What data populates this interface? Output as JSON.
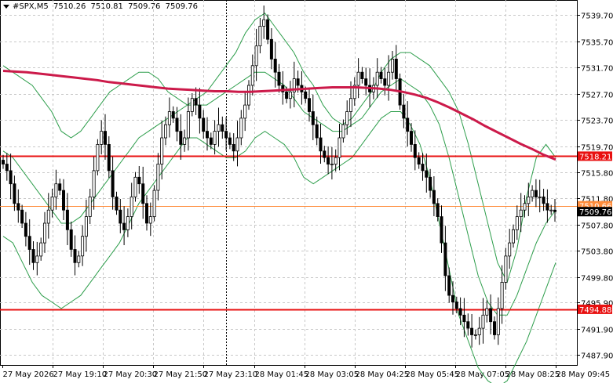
{
  "header": {
    "symbol": "#SPX,M5",
    "open": "7510.26",
    "high": "7510.81",
    "low": "7509.76",
    "close": "7509.76"
  },
  "colors": {
    "background": "#ffffff",
    "grid": "#c8c8c8",
    "candle": "#000000",
    "bollinger": "#2e9e4c",
    "moving_average": "#cc1a4a",
    "level_line": "#e81010",
    "bid_line": "#ff8c3a",
    "price_label_bg": "#000000",
    "level_label_bg": "#e81010"
  },
  "chart_data": {
    "type": "candlestick",
    "symbol": "#SPX",
    "timeframe": "M5",
    "ylim": [
      7486.4,
      7542.0
    ],
    "y_ticks": [
      "7539.70",
      "7535.70",
      "7531.70",
      "7527.70",
      "7523.70",
      "7519.70",
      "7515.80",
      "7511.80",
      "7507.80",
      "7503.80",
      "7499.80",
      "7495.90",
      "7491.90",
      "7487.90"
    ],
    "x_ticks": [
      "27 May 2026",
      "27 May 19:10",
      "27 May 20:30",
      "27 May 21:50",
      "27 May 23:10",
      "28 May 01:45",
      "28 May 03:05",
      "28 May 04:25",
      "28 May 05:45",
      "28 May 07:05",
      "28 May 08:25",
      "28 May 09:45"
    ],
    "grid": true,
    "horizontal_levels": [
      {
        "label": "7518.21",
        "value": 7518.21,
        "style": "level"
      },
      {
        "label": "7494.88",
        "value": 7494.88,
        "style": "level"
      },
      {
        "label": "7510.66",
        "value": 7510.66,
        "style": "bid"
      }
    ],
    "current_price": {
      "label": "7509.76",
      "value": 7509.76
    },
    "crosshair_time": "27 May 23:10",
    "close_series": [
      7517,
      7516,
      7514,
      7511,
      7510,
      7508,
      7506,
      7504,
      7502,
      7503,
      7505,
      7508,
      7510,
      7512,
      7514,
      7513,
      7510,
      7507,
      7504,
      7502,
      7503,
      7506,
      7509,
      7512,
      7516,
      7520,
      7522,
      7520,
      7516,
      7512,
      7510,
      7508,
      7507,
      7509,
      7512,
      7515,
      7514,
      7511,
      7508,
      7509,
      7513,
      7517,
      7521,
      7523,
      7525,
      7524,
      7522,
      7520,
      7521,
      7525,
      7527,
      7526,
      7524,
      7522,
      7521,
      7520,
      7522,
      7523,
      7522,
      7521,
      7520,
      7519,
      7521,
      7524,
      7526,
      7529,
      7532,
      7535,
      7538,
      7539,
      7536,
      7533,
      7531,
      7529,
      7528,
      7527,
      7528,
      7530,
      7529,
      7528,
      7527,
      7525,
      7523,
      7521,
      7519,
      7518,
      7517,
      7517,
      7518,
      7521,
      7523,
      7525,
      7527,
      7529,
      7531,
      7530,
      7529,
      7528,
      7529,
      7531,
      7530,
      7529,
      7531,
      7533,
      7530,
      7526,
      7524,
      7522,
      7520,
      7518,
      7517,
      7516,
      7515,
      7513,
      7511,
      7509,
      7505,
      7500,
      7497,
      7496,
      7495,
      7494,
      7493,
      7492,
      7491,
      7491,
      7492,
      7494,
      7495,
      7493,
      7491,
      7495,
      7499,
      7503,
      7505,
      7507,
      7509,
      7510,
      7511,
      7512,
      7513,
      7512,
      7512,
      7511,
      7510,
      7510,
      7509.76
    ],
    "ma_series": [
      7531.2,
      7531.1,
      7531.0,
      7530.8,
      7530.6,
      7530.4,
      7530.2,
      7530.0,
      7529.8,
      7529.5,
      7529.3,
      7529.1,
      7528.9,
      7528.7,
      7528.5,
      7528.4,
      7528.3,
      7528.2,
      7528.1,
      7528.1,
      7528.0,
      7528.0,
      7528.1,
      7528.2,
      7528.3,
      7528.4,
      7528.5,
      7528.6,
      7528.7,
      7528.7,
      7528.7,
      7528.6,
      7528.5,
      7528.3,
      7528.0,
      7527.6,
      7527.1,
      7526.4,
      7525.6,
      7524.7,
      7523.8,
      7522.8,
      7521.9,
      7521.0,
      7520.1,
      7519.3,
      7518.4,
      7517.7
    ],
    "bands": {
      "upper": [
        7532,
        7531,
        7530,
        7529,
        7527,
        7525,
        7522,
        7521,
        7522,
        7524,
        7526,
        7528,
        7529,
        7530,
        7531,
        7531,
        7530,
        7528,
        7527,
        7526,
        7527,
        7528,
        7530,
        7532,
        7534,
        7537,
        7539,
        7540,
        7538,
        7536,
        7534,
        7531,
        7529,
        7526,
        7524,
        7523,
        7524,
        7526,
        7528,
        7531,
        7533,
        7534,
        7534,
        7533,
        7532,
        7530,
        7528,
        7525,
        7520,
        7514,
        7508,
        7502,
        7499,
        7504,
        7512,
        7518,
        7520,
        7518
      ],
      "middle": [
        7519,
        7518,
        7516,
        7514,
        7512,
        7510,
        7508,
        7508,
        7509,
        7511,
        7513,
        7515,
        7517,
        7519,
        7521,
        7522,
        7523,
        7524,
        7525,
        7526,
        7526,
        7526,
        7527,
        7528,
        7529,
        7530,
        7531,
        7531,
        7530,
        7529,
        7527,
        7525,
        7524,
        7523,
        7522,
        7522,
        7523,
        7524,
        7526,
        7528,
        7529,
        7530,
        7529,
        7528,
        7526,
        7523,
        7518,
        7512,
        7506,
        7500,
        7496,
        7494,
        7494,
        7497,
        7501,
        7505,
        7508,
        7510
      ],
      "lower": [
        7506,
        7505,
        7502,
        7499,
        7497,
        7496,
        7495,
        7496,
        7497,
        7499,
        7501,
        7503,
        7505,
        7508,
        7511,
        7513,
        7515,
        7517,
        7519,
        7521,
        7521,
        7520,
        7519,
        7518,
        7518,
        7519,
        7521,
        7522,
        7521,
        7520,
        7518,
        7515,
        7514,
        7515,
        7516,
        7517,
        7518,
        7520,
        7522,
        7524,
        7525,
        7525,
        7523,
        7520,
        7515,
        7508,
        7501,
        7494,
        7490,
        7486,
        7484,
        7483,
        7484,
        7487,
        7490,
        7494,
        7498,
        7502
      ]
    }
  }
}
